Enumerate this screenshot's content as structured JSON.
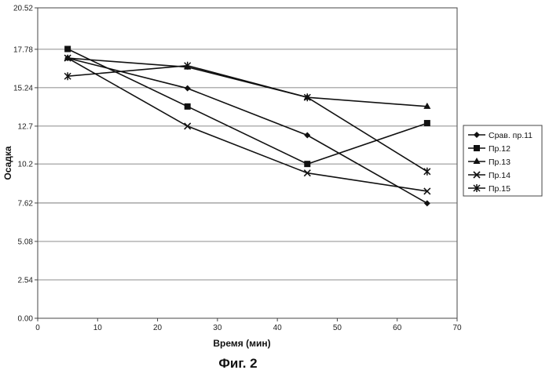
{
  "figure_caption": "Фиг. 2",
  "chart_data": {
    "type": "line",
    "xlabel": "Время (мин)",
    "ylabel": "Осадка",
    "xlim": [
      0,
      70
    ],
    "ylim": [
      0,
      20.52
    ],
    "x_ticks": [
      "0",
      "10",
      "20",
      "30",
      "40",
      "50",
      "60",
      "70"
    ],
    "y_ticks": [
      "0.00",
      "2.54",
      "5.08",
      "7.62",
      "10.2",
      "12.7",
      "15.24",
      "17.78",
      "20.52"
    ],
    "grid": "horizontal",
    "legend_position": "right",
    "x": [
      5,
      25,
      45,
      65
    ],
    "series": [
      {
        "name": "Срав. пр.11",
        "marker": "diamond",
        "values": [
          17.2,
          15.2,
          12.1,
          7.6
        ]
      },
      {
        "name": "Пр.12",
        "marker": "square",
        "values": [
          17.8,
          14.0,
          10.2,
          12.9
        ]
      },
      {
        "name": "Пр.13",
        "marker": "triangle",
        "values": [
          17.2,
          16.6,
          14.6,
          14.0
        ]
      },
      {
        "name": "Пр.14",
        "marker": "x",
        "values": [
          17.2,
          12.7,
          9.6,
          8.4
        ]
      },
      {
        "name": "Пр.15",
        "marker": "star",
        "values": [
          16.0,
          16.7,
          14.6,
          9.7
        ]
      }
    ]
  }
}
